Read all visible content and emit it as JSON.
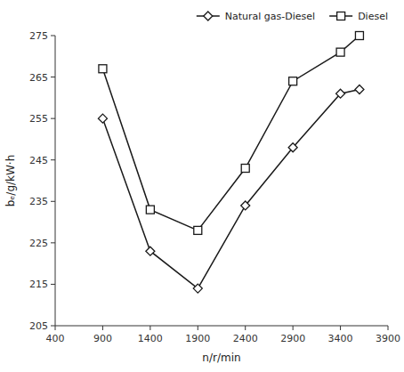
{
  "chart_data": {
    "type": "line",
    "xlabel": "n/r/min",
    "ylabel": "bₑ/g/kW·h",
    "x": [
      900,
      1400,
      1900,
      2400,
      2900,
      3400,
      3600
    ],
    "series": [
      {
        "name": "Natural gas-Diesel",
        "color": "#1a1a1a",
        "marker": "diamond",
        "values": [
          255,
          223,
          214,
          234,
          248,
          261,
          262
        ]
      },
      {
        "name": "Diesel",
        "color": "#1a1a1a",
        "marker": "square",
        "values": [
          267,
          233,
          228,
          243,
          264,
          271,
          275
        ]
      }
    ],
    "xlim": [
      400,
      3900
    ],
    "ylim": [
      205,
      275
    ],
    "xticks": [
      400,
      900,
      1400,
      1900,
      2400,
      2900,
      3400,
      3900
    ],
    "yticks": [
      205,
      215,
      225,
      235,
      245,
      255,
      265,
      275
    ],
    "legend": "upper right",
    "grid": false
  }
}
